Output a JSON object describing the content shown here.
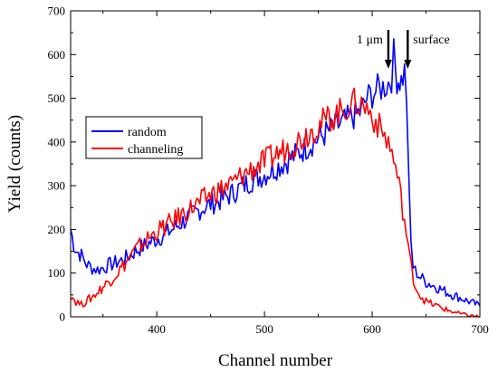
{
  "chart_data": {
    "type": "line",
    "title": "",
    "xlabel": "Channel number",
    "ylabel": "Yield (counts)",
    "xlim": [
      320,
      700
    ],
    "ylim": [
      0,
      700
    ],
    "x_ticks": [
      400,
      500,
      600,
      700
    ],
    "y_ticks": [
      0,
      100,
      200,
      300,
      400,
      500,
      600,
      700
    ],
    "grid": false,
    "legend_position": "middle-left",
    "series": [
      {
        "name": "random",
        "color": "#0000ff",
        "points": [
          [
            320,
            200
          ],
          [
            323,
            165
          ],
          [
            326,
            150
          ],
          [
            330,
            140
          ],
          [
            335,
            120
          ],
          [
            340,
            112
          ],
          [
            345,
            108
          ],
          [
            350,
            112
          ],
          [
            355,
            118
          ],
          [
            360,
            122
          ],
          [
            370,
            132
          ],
          [
            380,
            150
          ],
          [
            390,
            165
          ],
          [
            400,
            178
          ],
          [
            410,
            192
          ],
          [
            420,
            210
          ],
          [
            430,
            228
          ],
          [
            440,
            245
          ],
          [
            450,
            258
          ],
          [
            460,
            268
          ],
          [
            470,
            282
          ],
          [
            480,
            300
          ],
          [
            490,
            315
          ],
          [
            500,
            325
          ],
          [
            510,
            340
          ],
          [
            520,
            355
          ],
          [
            530,
            372
          ],
          [
            540,
            390
          ],
          [
            550,
            408
          ],
          [
            560,
            425
          ],
          [
            570,
            440
          ],
          [
            580,
            455
          ],
          [
            590,
            470
          ],
          [
            595,
            500
          ],
          [
            600,
            510
          ],
          [
            605,
            520
          ],
          [
            610,
            525
          ],
          [
            615,
            535
          ],
          [
            618,
            548
          ],
          [
            620,
            600
          ],
          [
            623,
            545
          ],
          [
            627,
            540
          ],
          [
            630,
            560
          ],
          [
            632,
            500
          ],
          [
            634,
            300
          ],
          [
            636,
            170
          ],
          [
            638,
            115
          ],
          [
            640,
            105
          ],
          [
            645,
            90
          ],
          [
            650,
            80
          ],
          [
            660,
            68
          ],
          [
            670,
            55
          ],
          [
            680,
            45
          ],
          [
            690,
            35
          ],
          [
            700,
            25
          ]
        ]
      },
      {
        "name": "channeling",
        "color": "#ff0000",
        "points": [
          [
            320,
            50
          ],
          [
            325,
            35
          ],
          [
            330,
            28
          ],
          [
            340,
            45
          ],
          [
            350,
            68
          ],
          [
            360,
            92
          ],
          [
            370,
            120
          ],
          [
            380,
            152
          ],
          [
            390,
            175
          ],
          [
            400,
            195
          ],
          [
            410,
            210
          ],
          [
            420,
            228
          ],
          [
            430,
            245
          ],
          [
            440,
            262
          ],
          [
            450,
            280
          ],
          [
            460,
            292
          ],
          [
            470,
            305
          ],
          [
            480,
            325
          ],
          [
            490,
            340
          ],
          [
            500,
            355
          ],
          [
            510,
            370
          ],
          [
            520,
            385
          ],
          [
            530,
            400
          ],
          [
            540,
            420
          ],
          [
            550,
            438
          ],
          [
            560,
            455
          ],
          [
            570,
            468
          ],
          [
            575,
            478
          ],
          [
            580,
            485
          ],
          [
            585,
            490
          ],
          [
            590,
            485
          ],
          [
            595,
            478
          ],
          [
            600,
            460
          ],
          [
            605,
            440
          ],
          [
            610,
            420
          ],
          [
            615,
            400
          ],
          [
            620,
            360
          ],
          [
            625,
            300
          ],
          [
            630,
            220
          ],
          [
            635,
            130
          ],
          [
            640,
            70
          ],
          [
            645,
            48
          ],
          [
            650,
            35
          ],
          [
            660,
            25
          ],
          [
            670,
            15
          ],
          [
            680,
            8
          ],
          [
            690,
            3
          ],
          [
            700,
            0
          ]
        ]
      }
    ],
    "annotations": [
      {
        "text": "1 μm",
        "arrow_x": 615
      },
      {
        "text": "surface",
        "arrow_x": 633
      }
    ]
  }
}
